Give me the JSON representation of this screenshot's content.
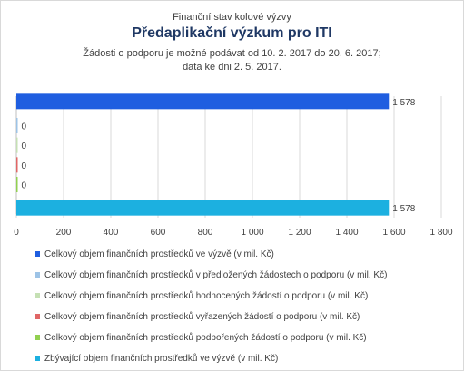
{
  "chart_data": {
    "type": "bar",
    "orientation": "horizontal",
    "pretitle": "Finanční stav kolové výzvy",
    "title": "Předaplikační výzkum pro ITI",
    "subtitle_line1": "Žádosti o podporu je možné  podávat od 10. 2. 2017 do 20. 6. 2017;",
    "subtitle_line2": "data ke dni 2. 5. 2017.",
    "xlim": [
      0,
      1800
    ],
    "x_ticks": [
      "0",
      "200",
      "400",
      "600",
      "800",
      "1 000",
      "1 200",
      "1 400",
      "1 600",
      "1 800"
    ],
    "grid": true,
    "legend_position": "bottom",
    "series": [
      {
        "name": "Celkový objem finančních prostředků ve výzvě (v mil. Kč)",
        "value": 1578,
        "label": "1 578",
        "color": "#1f5ee0"
      },
      {
        "name": "Celkový objem finančních prostředků v předložených žádostech o podporu (v mil. Kč)",
        "value": 0,
        "label": "0",
        "color": "#9dc3e6"
      },
      {
        "name": "Celkový objem finančních prostředků hodnocených žádostí o podporu (v mil. Kč)",
        "value": 0,
        "label": "0",
        "color": "#c5e0b4"
      },
      {
        "name": "Celkový objem finančních prostředků vyřazených žádostí o podporu (v mil. Kč)",
        "value": 0,
        "label": "0",
        "color": "#e06666"
      },
      {
        "name": "Celkový objem finančních prostředků podpořených žádostí o podporu (v mil. Kč)",
        "value": 0,
        "label": "0",
        "color": "#92d050"
      },
      {
        "name": "Zbývající objem finančních prostředků ve výzvě (v mil. Kč)",
        "value": 1578,
        "label": "1 578",
        "color": "#1cb0e0"
      }
    ]
  }
}
